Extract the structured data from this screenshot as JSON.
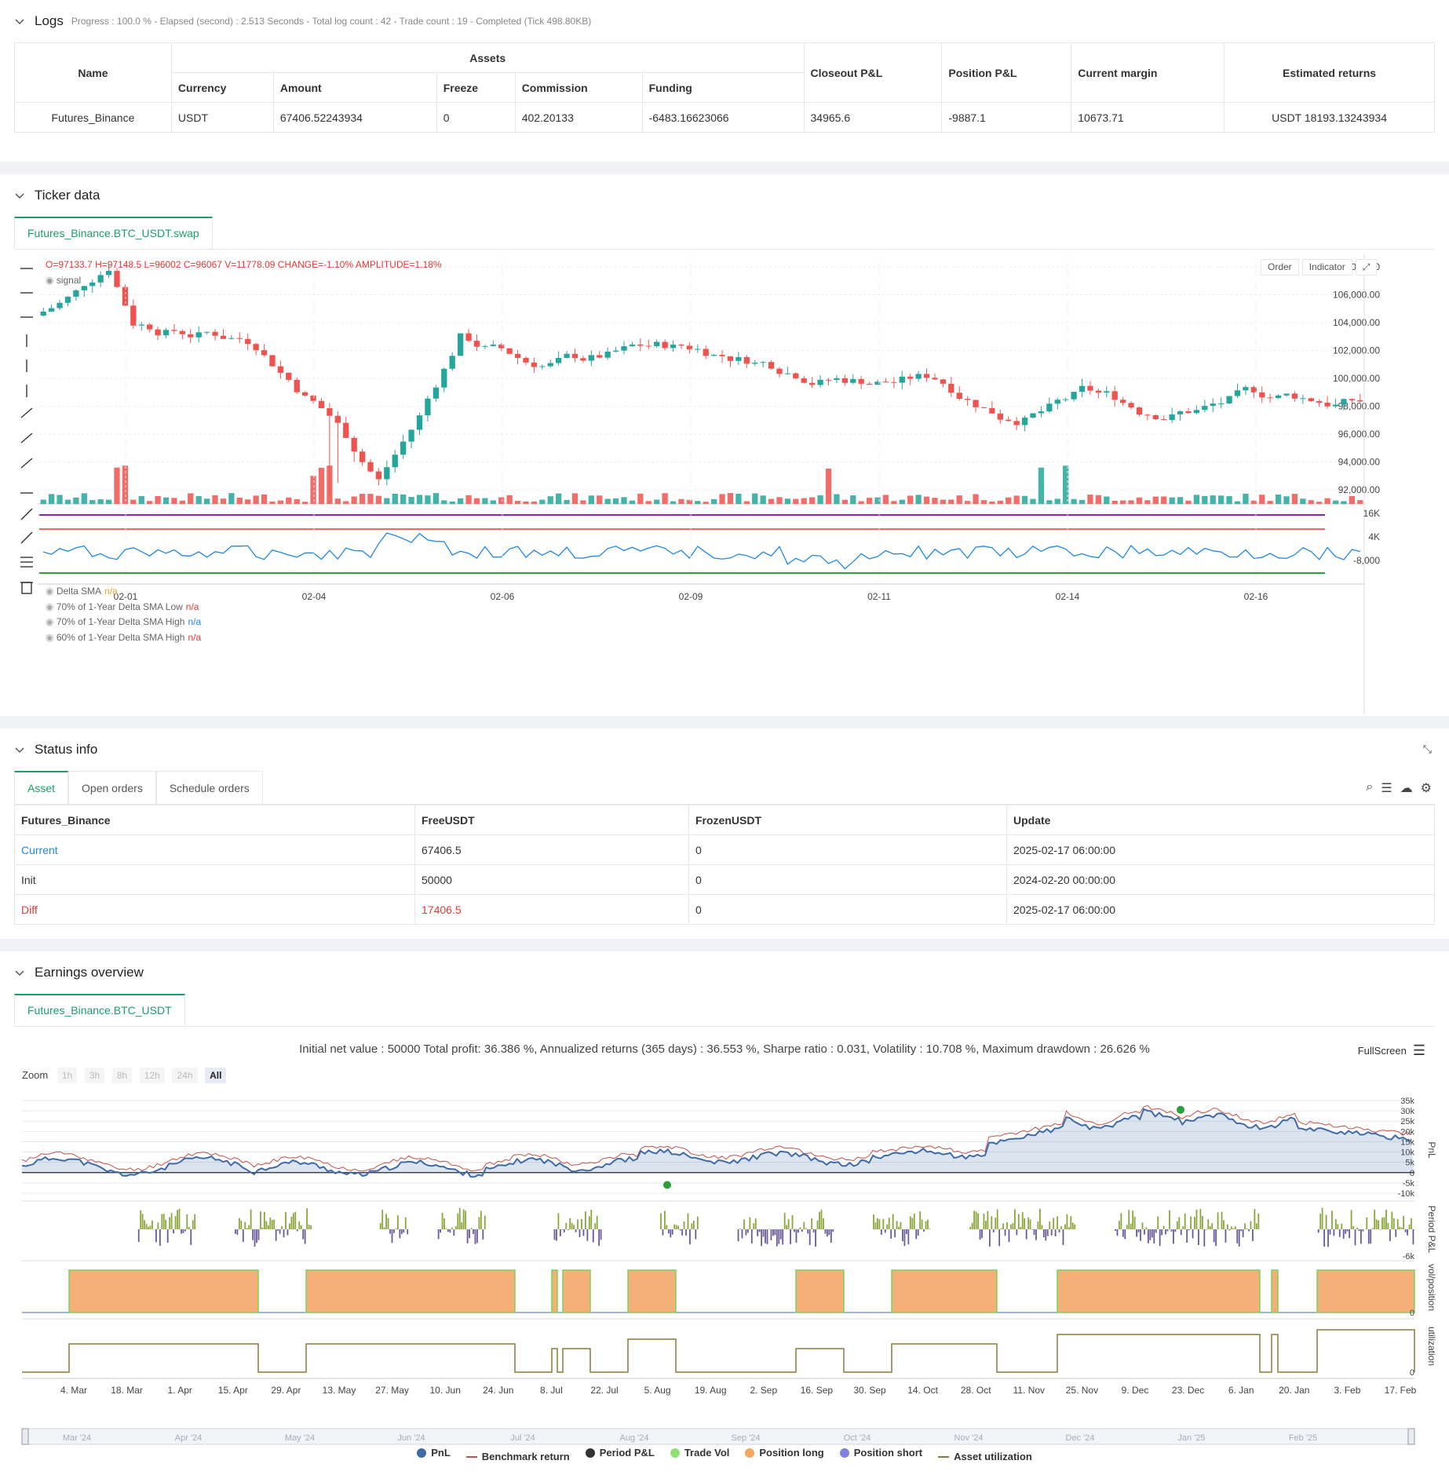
{
  "logs": {
    "title": "Logs",
    "summary": "Progress : 100.0 % - Elapsed (second) : 2.513  Seconds - Total log count : 42 - Trade count : 19 - Completed (Tick 498.80KB)",
    "table": {
      "col_name": "Name",
      "col_assets": "Assets",
      "sub_cols": [
        "Currency",
        "Amount",
        "Freeze",
        "Commission",
        "Funding"
      ],
      "col_closeout": "Closeout P&L",
      "col_position": "Position P&L",
      "col_margin": "Current margin",
      "col_returns": "Estimated returns",
      "row": {
        "name": "Futures_Binance",
        "currency": "USDT",
        "amount": "67406.52243934",
        "freeze": "0",
        "commission": "402.20133",
        "funding": "-6483.16623066",
        "closeout": "34965.6",
        "position": "-9887.1",
        "margin": "10673.71",
        "returns": "USDT 18193.13243934"
      }
    }
  },
  "ticker": {
    "title": "Ticker data",
    "tab": "Futures_Binance.BTC_USDT.swap",
    "ohlc": {
      "o": "O=97133.7",
      "h": "H=97148.5",
      "l": "L=96002",
      "c": "C=96067",
      "v": "V=11778.09",
      "change": "CHANGE=-1.10%",
      "amp": "AMPLITUDE=1.18%"
    },
    "signal_label": "signal",
    "order_btn": "Order",
    "indicator_btn": "Indicator",
    "price_ticks": [
      "108,000.00",
      "106,000.00",
      "104,000.00",
      "102,000.00",
      "100,000.00",
      "98,000.00",
      "96,000.00",
      "94,000.00",
      "92,000.00"
    ],
    "delta_ticks": [
      "16K",
      "4K",
      "-8,000"
    ],
    "date_ticks": [
      "02-01",
      "02-04",
      "02-06",
      "02-09",
      "02-11",
      "02-14",
      "02-16"
    ],
    "indicator_legend": [
      {
        "label": "Delta SMA",
        "value": "n/a",
        "color": "#f0a030"
      },
      {
        "label": "70% of 1-Year Delta SMA Low",
        "value": "n/a",
        "color": "#e53935"
      },
      {
        "label": "70% of 1-Year Delta SMA High",
        "value": "n/a",
        "color": "#1e88e5"
      },
      {
        "label": "60% of 1-Year Delta SMA High",
        "value": "n/a",
        "color": "#e53935"
      }
    ],
    "colors": {
      "up": "#26a69a",
      "down": "#ef5350",
      "delta": "#1e88e5",
      "purple": "#8e24aa",
      "red": "#e53935",
      "green": "#2e9e3a"
    }
  },
  "status": {
    "title": "Status info",
    "tabs": [
      "Asset",
      "Open orders",
      "Schedule orders"
    ],
    "headers": [
      "Futures_Binance",
      "FreeUSDT",
      "FrozenUSDT",
      "Update"
    ],
    "rows": [
      {
        "label": "Current",
        "free": "67406.5",
        "frozen": "0",
        "update": "2025-02-17 06:00:00"
      },
      {
        "label": "Init",
        "free": "50000",
        "frozen": "0",
        "update": "2024-02-20 00:00:00"
      },
      {
        "label": "Diff",
        "free": "17406.5",
        "frozen": "0",
        "update": "2025-02-17 06:00:00"
      }
    ]
  },
  "earnings": {
    "title": "Earnings overview",
    "tab": "Futures_Binance.BTC_USDT",
    "summary": "Initial net value : 50000 Total profit: 36.386 %, Annualized returns (365 days) : 36.553 %, Sharpe ratio : 0.031, Volatility : 10.708 %, Maximum drawdown : 26.626 %",
    "fullscreen": "FullScreen",
    "zoom_label": "Zoom",
    "zoom_options": [
      "1h",
      "3h",
      "8h",
      "12h",
      "24h",
      "All"
    ],
    "pnl_ticks": [
      "35k",
      "30k",
      "25k",
      "20k",
      "15k",
      "10k",
      "5k",
      "0",
      "-5k",
      "-10k"
    ],
    "period_ticks": [
      "-6k"
    ],
    "pos_ticks": [
      "0"
    ],
    "util_ticks": [
      "0"
    ],
    "axis_titles": [
      "PnL",
      "Period P&L",
      "vol/position",
      "utilization"
    ],
    "x_ticks": [
      "4. Mar",
      "18. Mar",
      "1. Apr",
      "15. Apr",
      "29. Apr",
      "13. May",
      "27. May",
      "10. Jun",
      "24. Jun",
      "8. Jul",
      "22. Jul",
      "5. Aug",
      "19. Aug",
      "2. Sep",
      "16. Sep",
      "30. Sep",
      "14. Oct",
      "28. Oct",
      "11. Nov",
      "25. Nov",
      "9. Dec",
      "23. Dec",
      "6. Jan",
      "20. Jan",
      "3. Feb",
      "17. Feb"
    ],
    "legend": [
      {
        "label": "PnL",
        "color": "#3f6aa8",
        "kind": "dot"
      },
      {
        "label": "Benchmark return",
        "color": "#c0504d",
        "kind": "line"
      },
      {
        "label": "Period P&L",
        "color": "#333333",
        "kind": "dot"
      },
      {
        "label": "Trade Vol",
        "color": "#90e070",
        "kind": "dot"
      },
      {
        "label": "Position long",
        "color": "#f5a85c",
        "kind": "dot"
      },
      {
        "label": "Position short",
        "color": "#8080e0",
        "kind": "dot"
      },
      {
        "label": "Asset utilization",
        "color": "#8a7a3a",
        "kind": "line"
      }
    ],
    "navigator_ticks": [
      "Mar '24",
      "Apr '24",
      "May '24",
      "Jun '24",
      "Jul '24",
      "Aug '24",
      "Sep '24",
      "Oct '24",
      "Nov '24",
      "Dec '24",
      "Jan '25",
      "Feb '25"
    ]
  }
}
